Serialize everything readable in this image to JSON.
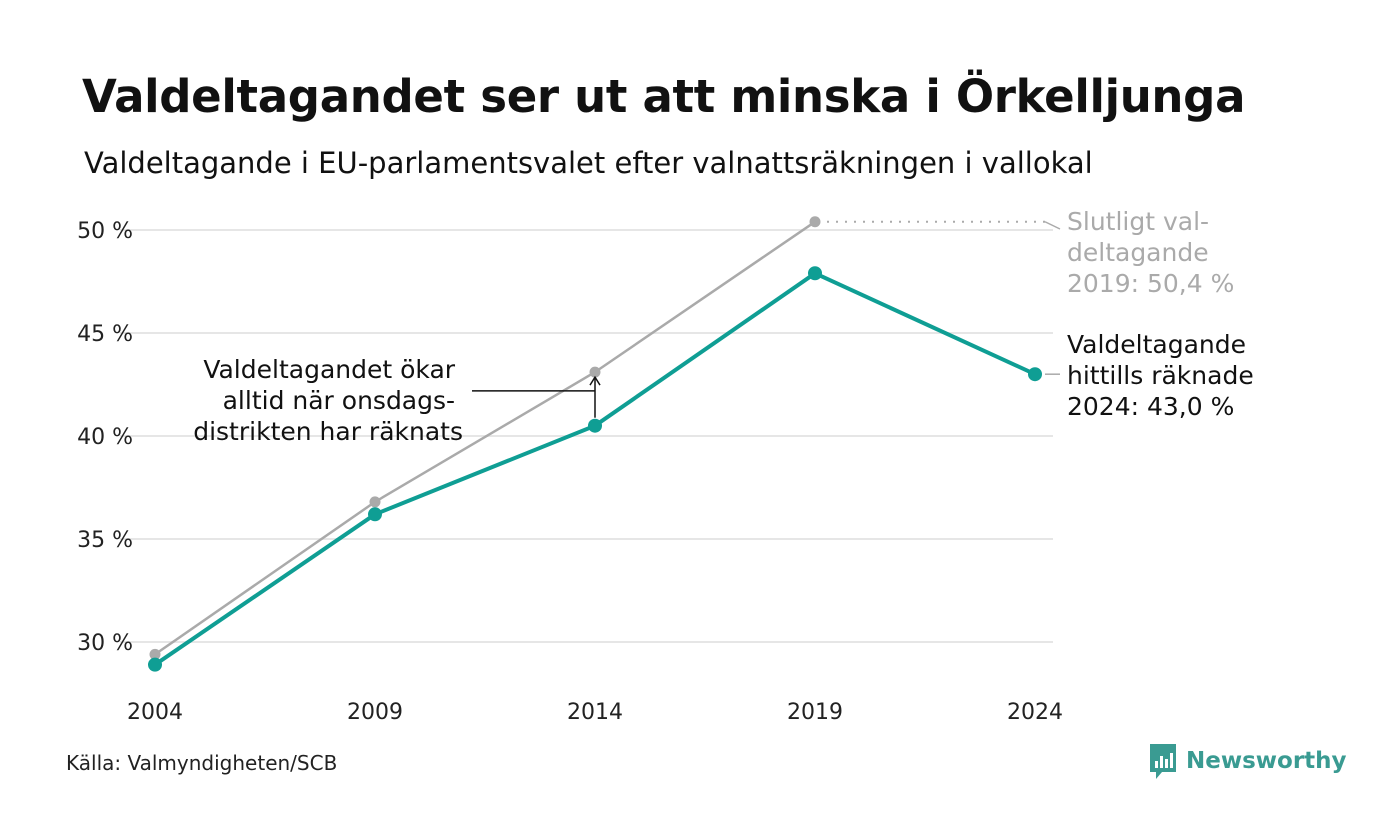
{
  "title": "Valdeltagandet ser ut att minska i Örkelljunga",
  "subtitle": "Valdeltagande i EU-parlamentsvalet efter valnattsräkningen i vallokal",
  "source": "Källa: Valmyndigheten/SCB",
  "brand": "Newsworthy",
  "colors": {
    "counted": "#0f9e94",
    "final": "#aaaaaa",
    "grid": "#e6e6e6",
    "brand": "#3a9b92"
  },
  "chart_data": {
    "type": "line",
    "x": [
      2004,
      2009,
      2014,
      2019,
      2024
    ],
    "ylim": [
      28,
      51
    ],
    "y_ticks": [
      30,
      35,
      40,
      45,
      50
    ],
    "y_tick_labels": [
      "30 %",
      "35 %",
      "40 %",
      "45 %",
      "50 %"
    ],
    "grid": true,
    "series": [
      {
        "key": "final",
        "values": [
          29.4,
          36.8,
          43.1,
          50.4,
          null
        ]
      },
      {
        "key": "counted",
        "values": [
          28.9,
          36.2,
          40.5,
          47.9,
          43.0
        ]
      }
    ],
    "annotations": {
      "final_label": [
        "Slutligt val-",
        "deltagande",
        "2019: 50,4 %"
      ],
      "counted_label": [
        "Valdeltagande",
        "hittills räknade",
        "2024: 43,0 %"
      ],
      "note": [
        "Valdeltagandet ökar",
        "alltid när onsdags-",
        "distrikten har räknats"
      ]
    }
  }
}
